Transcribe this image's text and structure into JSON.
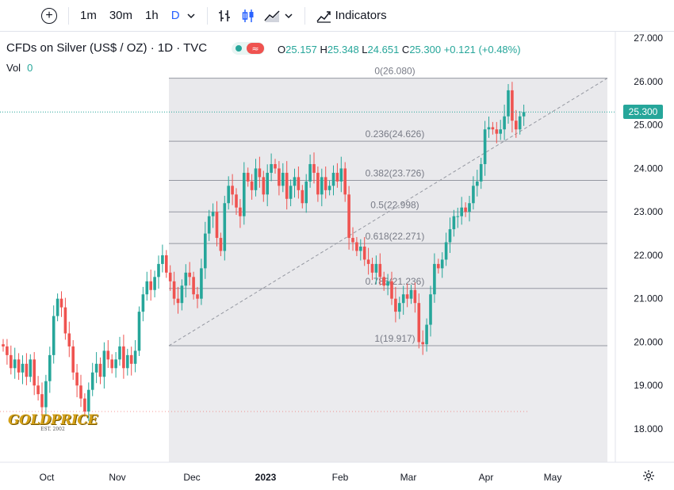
{
  "toolbar": {
    "intervals": [
      {
        "label": "1m",
        "active": false
      },
      {
        "label": "30m",
        "active": false
      },
      {
        "label": "1h",
        "active": false
      },
      {
        "label": "D",
        "active": true
      }
    ],
    "indicators_label": "Indicators",
    "icons": [
      "add-symbol-icon",
      "chevron-down-icon",
      "compare-bars-icon",
      "candles-icon",
      "area-icon",
      "chevron-down-icon",
      "indicators-icon"
    ]
  },
  "header": {
    "title": "CFDs on Silver (US$ / OZ) · 1D · TVC",
    "ohlc": {
      "o_label": "O",
      "o": "25.157",
      "h_label": "H",
      "h": "25.348",
      "l_label": "L",
      "l": "24.651",
      "c_label": "C",
      "c": "25.300",
      "change": "+0.121 (+0.48%)"
    },
    "vol_label": "Vol",
    "vol_value": "0"
  },
  "last_price": "25.300",
  "colors": {
    "up": "#26a69a",
    "down": "#ef5350",
    "fib_bg": "#e9e9ec",
    "accent": "#2962ff"
  },
  "logo": {
    "text": "GOLDPRICE",
    "sub": "EST. 2002"
  },
  "chart_data": {
    "type": "candlestick",
    "title": "CFDs on Silver (US$ / OZ) · 1D · TVC",
    "x_tick_labels": [
      "Oct",
      "Nov",
      "Dec",
      "2023",
      "Feb",
      "Mar",
      "Apr",
      "May"
    ],
    "y_tick_labels": [
      "27.000",
      "26.000",
      "25.000",
      "24.000",
      "23.000",
      "22.000",
      "21.000",
      "20.000",
      "19.000",
      "18.000"
    ],
    "ylim": [
      17.2,
      27.1
    ],
    "fibonacci": [
      {
        "label": "0(26.080)",
        "value": 26.08
      },
      {
        "label": "0.236(24.626)",
        "value": 24.626
      },
      {
        "label": "0.382(23.726)",
        "value": 23.726
      },
      {
        "label": "0.5(22.998)",
        "value": 22.998
      },
      {
        "label": "0.618(22.271)",
        "value": 22.271
      },
      {
        "label": "0.786(21.236)",
        "value": 21.236
      },
      {
        "label": "1(19.917)",
        "value": 19.917
      }
    ],
    "closes": [
      19.9,
      19.7,
      19.4,
      19.6,
      19.3,
      19.5,
      19.2,
      19.6,
      19.0,
      18.8,
      18.5,
      19.1,
      19.7,
      20.6,
      21.0,
      20.8,
      20.2,
      19.9,
      19.3,
      19.0,
      18.7,
      18.4,
      18.9,
      19.3,
      19.5,
      19.2,
      19.8,
      19.6,
      19.4,
      19.6,
      19.9,
      19.4,
      19.7,
      19.5,
      19.8,
      20.7,
      21.1,
      21.4,
      21.2,
      21.5,
      21.8,
      22.0,
      21.6,
      21.4,
      21.0,
      20.9,
      21.3,
      21.6,
      21.5,
      21.1,
      21.0,
      21.7,
      22.5,
      22.9,
      23.0,
      22.4,
      22.1,
      23.2,
      23.6,
      23.4,
      23.1,
      22.9,
      23.9,
      23.7,
      23.5,
      24.0,
      23.8,
      23.4,
      23.9,
      24.1,
      24.0,
      23.6,
      23.9,
      23.3,
      23.6,
      23.8,
      23.5,
      23.2,
      23.7,
      24.1,
      23.9,
      23.4,
      23.8,
      23.5,
      23.6,
      23.9,
      23.7,
      24.0,
      23.4,
      22.4,
      22.3,
      22.1,
      22.2,
      21.9,
      21.8,
      21.6,
      21.8,
      21.5,
      21.3,
      21.4,
      21.0,
      20.7,
      20.9,
      21.1,
      21.0,
      21.2,
      20.9,
      20.0,
      19.95,
      20.4,
      21.1,
      21.8,
      21.7,
      21.9,
      22.3,
      22.6,
      22.9,
      22.9,
      23.1,
      23.0,
      23.2,
      23.6,
      23.7,
      24.1,
      24.9,
      24.95,
      24.9,
      24.8,
      24.9,
      25.2,
      25.8,
      25.1,
      24.9,
      25.2,
      25.3
    ]
  }
}
